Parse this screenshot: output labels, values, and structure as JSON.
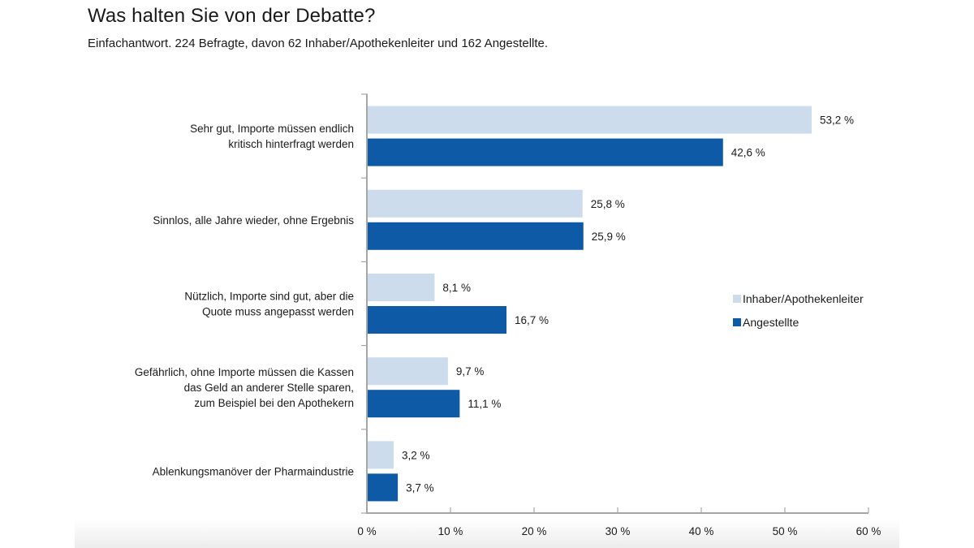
{
  "chart_data": {
    "type": "bar",
    "orientation": "horizontal",
    "title": "Was halten Sie von der Debatte?",
    "subtitle": "Einfachantwort. 224 Befragte, davon 62 Inhaber/Apothekenleiter und 162 Angestellte.",
    "xlabel": "",
    "ylabel": "",
    "xlim": [
      0,
      60
    ],
    "x_ticks": [
      0,
      10,
      20,
      30,
      40,
      50,
      60
    ],
    "x_tick_labels": [
      "0 %",
      "10 %",
      "20 %",
      "30 %",
      "40 %",
      "50 %",
      "60 %"
    ],
    "grid": false,
    "legend_position": "right",
    "categories": [
      [
        "Sehr gut, Importe müssen endlich",
        "kritisch hinterfragt werden"
      ],
      [
        "Sinnlos, alle Jahre wieder, ohne Ergebnis"
      ],
      [
        "Nützlich, Importe sind gut, aber die",
        "Quote muss angepasst werden"
      ],
      [
        "Gefährlich, ohne Importe müssen die Kassen",
        "das Geld an anderer Stelle sparen,",
        "zum Beispiel bei den Apothekern"
      ],
      [
        "Ablenkungsmanöver der Pharmaindustrie"
      ]
    ],
    "series": [
      {
        "name": "Inhaber/Apothekenleiter",
        "color": "#cddcec",
        "values": [
          53.2,
          25.8,
          8.1,
          9.7,
          3.2
        ],
        "labels": [
          "53,2 %",
          "25,8 %",
          "8,1 %",
          "9,7 %",
          "3,2 %"
        ]
      },
      {
        "name": "Angestellte",
        "color": "#0e5aa7",
        "values": [
          42.6,
          25.9,
          16.7,
          11.1,
          3.7
        ],
        "labels": [
          "42,6 %",
          "25,9 %",
          "16,7 %",
          "11,1 %",
          "3,7 %"
        ]
      }
    ]
  }
}
